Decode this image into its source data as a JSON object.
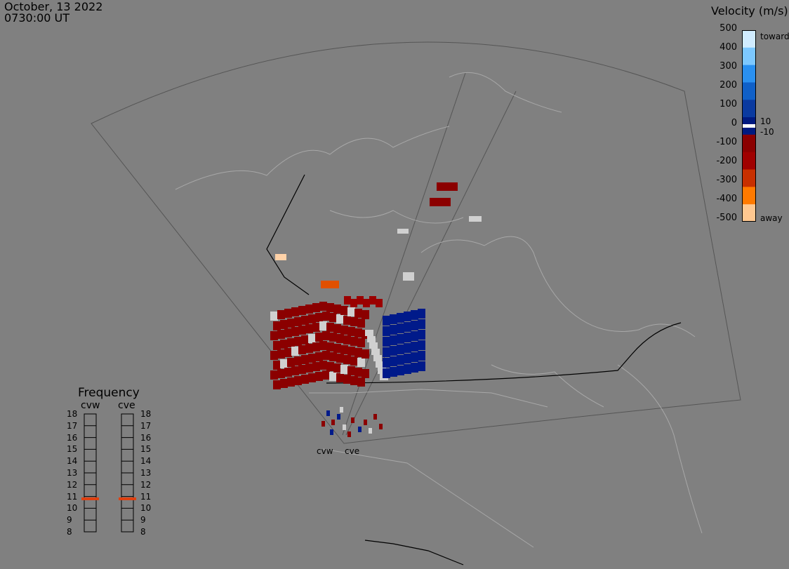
{
  "date_line": "October, 13 2022",
  "time_line": "0730:00 UT",
  "colorbar": {
    "title": "Velocity (m/s)",
    "ticks": [
      "500",
      "400",
      "300",
      "200",
      "100",
      "0",
      "-100",
      "-200",
      "-300",
      "-400",
      "-500"
    ],
    "threshold_pos": "10",
    "threshold_neg": "-10",
    "toward_label": "toward",
    "away_label": "away",
    "colors": [
      "#d0ecff",
      "#7cc8ff",
      "#2a90f0",
      "#1060c8",
      "#0a3aa0",
      "#001a80",
      "#8b0000",
      "#a00000",
      "#c83000",
      "#ff7a00",
      "#ffc890"
    ]
  },
  "frequency": {
    "title": "Frequency",
    "radars": [
      {
        "name": "cvw",
        "freq": 10.8
      },
      {
        "name": "cve",
        "freq": 10.8
      }
    ],
    "levels": [
      "18",
      "17",
      "16",
      "15",
      "14",
      "13",
      "12",
      "11",
      "10",
      "9",
      "8"
    ],
    "marker_color": "#e04010"
  },
  "radar_labels": {
    "cvw": "cvw",
    "cve": "cve"
  }
}
